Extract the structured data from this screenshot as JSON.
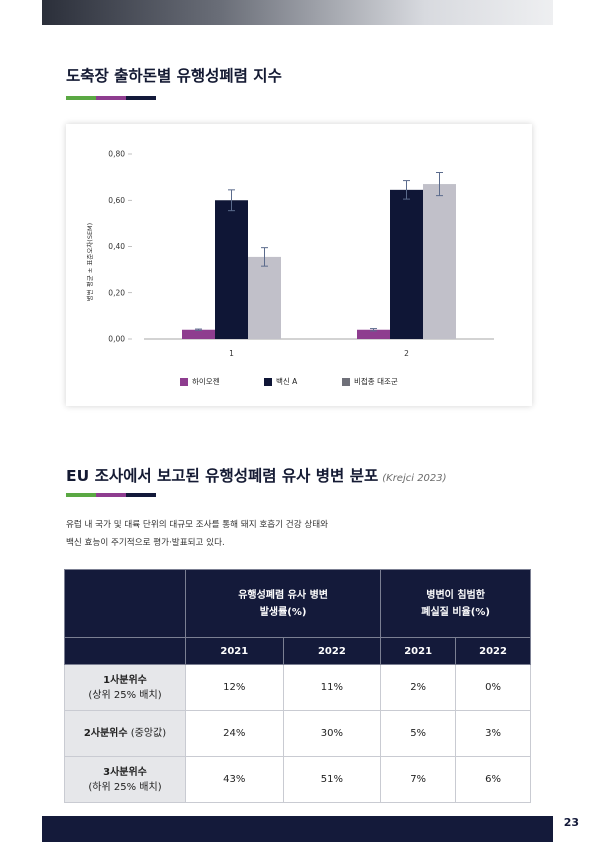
{
  "section1": {
    "title": "도축장 출하돈별 유행성폐렴 지수"
  },
  "chart_data": {
    "type": "bar",
    "ylabel": "병변 평균 ± 표준오차(SEM)",
    "xlabel": "",
    "ylim": [
      0,
      0.8
    ],
    "yticks": [
      "0,00",
      "0,20",
      "0,40",
      "0,60",
      "0,80"
    ],
    "ytick_values": [
      0,
      0.2,
      0.4,
      0.6,
      0.8
    ],
    "categories": [
      "1",
      "2"
    ],
    "series": [
      {
        "name": "하이오젠",
        "color": "#8e3d8f",
        "values": [
          0.04,
          0.04
        ],
        "errors": [
          0.003,
          0.005
        ]
      },
      {
        "name": "백신 A",
        "color": "#0f1636",
        "values": [
          0.6,
          0.645
        ],
        "errors": [
          0.045,
          0.04
        ]
      },
      {
        "name": "비접종 대조군",
        "color": "#c1c0c9",
        "values": [
          0.355,
          0.67
        ],
        "errors": [
          0.04,
          0.05
        ]
      }
    ],
    "grid": false,
    "legend_position": "bottom"
  },
  "section2": {
    "title": "EU 조사에서 보고된 유행성폐렴 유사 병변 분포",
    "citation": "(Krejci 2023)",
    "intro_line1": "유럽 내 국가 및 대륙 단위의 대규모 조사를 통해 돼지 호흡기 건강 상태와",
    "intro_line2": "백신 효능이 주기적으로 평가·발표되고 있다."
  },
  "table": {
    "group1_line1": "유행성폐렴 유사 병변",
    "group1_line2": "발생률(%)",
    "group2_line1": "병변이 침범한",
    "group2_line2": "폐실질 비율(%)",
    "years": [
      "2021",
      "2022",
      "2021",
      "2022"
    ],
    "rows": [
      {
        "label_bold": "1사분위수",
        "label_sub": "(상위 25% 배치)",
        "values": [
          "12%",
          "11%",
          "2%",
          "0%"
        ]
      },
      {
        "label_bold": "2사분위수",
        "label_sub": " (중앙값)",
        "values": [
          "24%",
          "30%",
          "5%",
          "3%"
        ]
      },
      {
        "label_bold": "3사분위수",
        "label_sub": "(하위 25% 배치)",
        "values": [
          "43%",
          "51%",
          "7%",
          "6%"
        ]
      }
    ]
  },
  "footer": {
    "page_number": "23"
  }
}
